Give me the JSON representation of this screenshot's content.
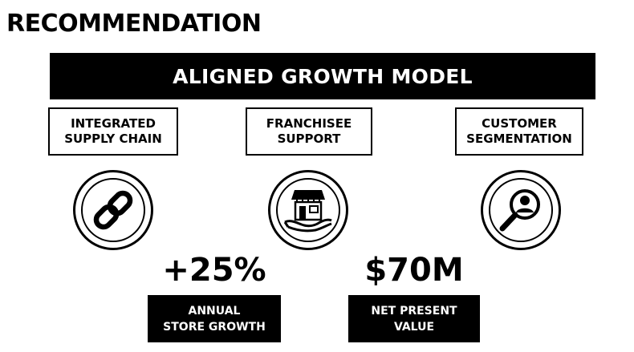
{
  "heading": "RECOMMENDATION",
  "banner": "ALIGNED GROWTH MODEL",
  "pillars": [
    {
      "label": "INTEGRATED\nSUPPLY CHAIN",
      "icon": "chain-link-icon"
    },
    {
      "label": "FRANCHISEE\nSUPPORT",
      "icon": "storefront-in-hand-icon"
    },
    {
      "label": "CUSTOMER\nSEGMENTATION",
      "icon": "magnifier-person-icon"
    }
  ],
  "metrics": [
    {
      "value": "+25%",
      "label": "ANNUAL\nSTORE GROWTH"
    },
    {
      "value": "$70M",
      "label": "NET PRESENT\nVALUE"
    }
  ],
  "colors": {
    "primary": "#000000",
    "background": "#ffffff"
  }
}
